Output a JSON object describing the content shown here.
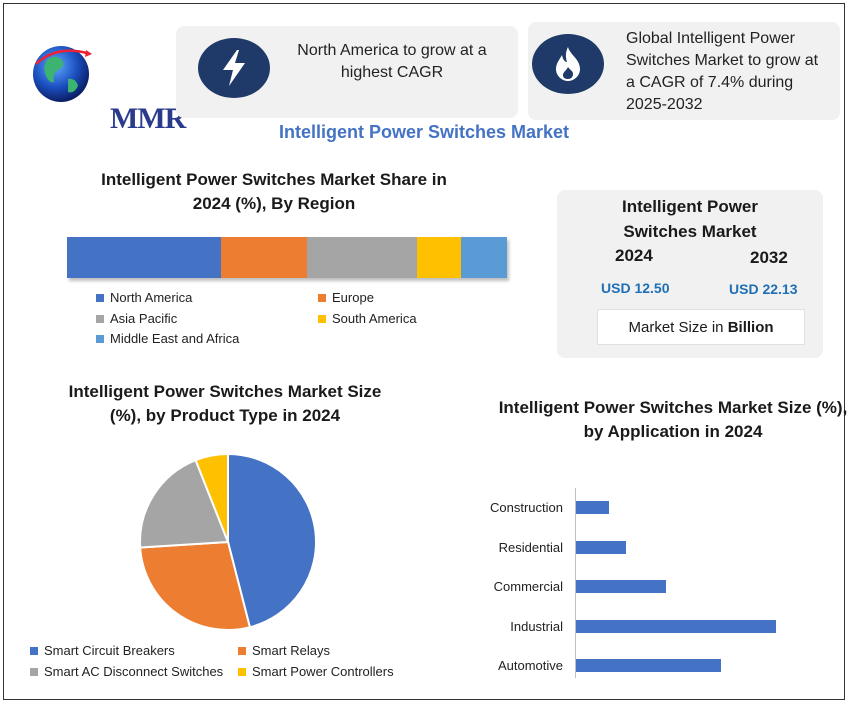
{
  "brand": {
    "logo_text": "MMR"
  },
  "cards": [
    {
      "icon": "lightning-icon",
      "text": "North America to grow at a highest CAGR"
    },
    {
      "icon": "flame-icon",
      "text": "Global Intelligent Power Switches Market to grow at a CAGR of 7.4% during 2025-2032"
    }
  ],
  "main_title": "Intelligent Power Switches Market",
  "market_box": {
    "title": "Intelligent Power Switches Market",
    "year1": "2024",
    "value1": "USD 12.50",
    "year2": "2032",
    "value2": "USD 22.13",
    "unit_prefix": "Market Size in ",
    "unit_bold": "Billion"
  },
  "colors": {
    "blue": "#4472c4",
    "orange": "#ed7d31",
    "gray": "#a5a5a5",
    "yellow": "#ffc000",
    "light_blue": "#5b9bd5",
    "navy": "#1f3a68"
  },
  "chart_data": [
    {
      "type": "bar",
      "orientation": "stacked-horizontal",
      "title": "Intelligent Power Switches Market Share in 2024 (%), By Region",
      "categories": [
        "North America",
        "Europe",
        "Asia Pacific",
        "South America",
        "Middle East and Africa"
      ],
      "values": [
        35,
        19.5,
        25,
        10,
        10.5
      ],
      "legend": "bottom"
    },
    {
      "type": "pie",
      "title": "Intelligent Power Switches Market Size (%), by Product Type in 2024",
      "categories": [
        "Smart Circuit Breakers",
        "Smart Relays",
        "Smart AC Disconnect Switches",
        "Smart Power Controllers"
      ],
      "values": [
        46,
        28,
        20,
        6
      ],
      "legend": "bottom"
    },
    {
      "type": "bar",
      "orientation": "horizontal",
      "title": "Intelligent Power Switches Market Size (%), by Application in 2024",
      "categories": [
        "Construction",
        "Residential",
        "Commercial",
        "Industrial",
        "Automotive"
      ],
      "values": [
        6.5,
        10,
        18,
        40,
        29
      ]
    }
  ]
}
